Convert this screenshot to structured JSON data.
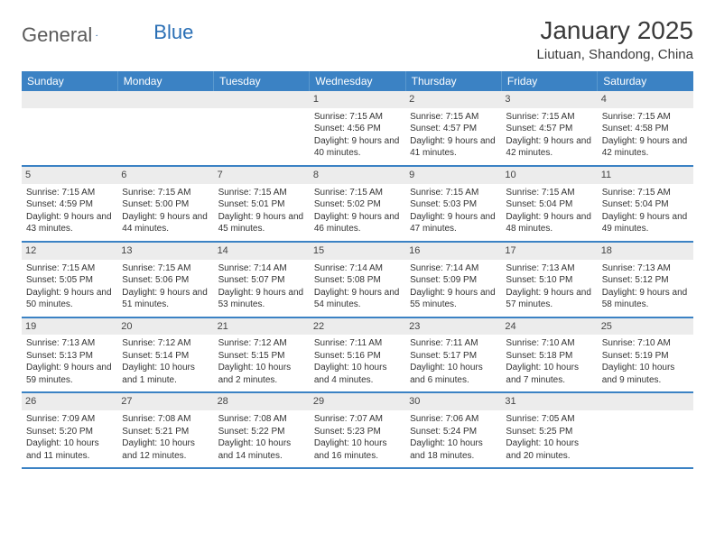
{
  "logo": {
    "text1": "General",
    "text2": "Blue"
  },
  "title": "January 2025",
  "location": "Liutuan, Shandong, China",
  "colors": {
    "header_bg": "#3b82c4",
    "header_text": "#ffffff",
    "daynum_bg": "#ececec",
    "border": "#3b82c4",
    "logo_gray": "#5a5a5a",
    "logo_blue": "#2a6fb5"
  },
  "days_of_week": [
    "Sunday",
    "Monday",
    "Tuesday",
    "Wednesday",
    "Thursday",
    "Friday",
    "Saturday"
  ],
  "weeks": [
    [
      {
        "blank": true
      },
      {
        "blank": true
      },
      {
        "blank": true
      },
      {
        "n": "1",
        "sr": "7:15 AM",
        "ss": "4:56 PM",
        "dl": "9 hours and 40 minutes."
      },
      {
        "n": "2",
        "sr": "7:15 AM",
        "ss": "4:57 PM",
        "dl": "9 hours and 41 minutes."
      },
      {
        "n": "3",
        "sr": "7:15 AM",
        "ss": "4:57 PM",
        "dl": "9 hours and 42 minutes."
      },
      {
        "n": "4",
        "sr": "7:15 AM",
        "ss": "4:58 PM",
        "dl": "9 hours and 42 minutes."
      }
    ],
    [
      {
        "n": "5",
        "sr": "7:15 AM",
        "ss": "4:59 PM",
        "dl": "9 hours and 43 minutes."
      },
      {
        "n": "6",
        "sr": "7:15 AM",
        "ss": "5:00 PM",
        "dl": "9 hours and 44 minutes."
      },
      {
        "n": "7",
        "sr": "7:15 AM",
        "ss": "5:01 PM",
        "dl": "9 hours and 45 minutes."
      },
      {
        "n": "8",
        "sr": "7:15 AM",
        "ss": "5:02 PM",
        "dl": "9 hours and 46 minutes."
      },
      {
        "n": "9",
        "sr": "7:15 AM",
        "ss": "5:03 PM",
        "dl": "9 hours and 47 minutes."
      },
      {
        "n": "10",
        "sr": "7:15 AM",
        "ss": "5:04 PM",
        "dl": "9 hours and 48 minutes."
      },
      {
        "n": "11",
        "sr": "7:15 AM",
        "ss": "5:04 PM",
        "dl": "9 hours and 49 minutes."
      }
    ],
    [
      {
        "n": "12",
        "sr": "7:15 AM",
        "ss": "5:05 PM",
        "dl": "9 hours and 50 minutes."
      },
      {
        "n": "13",
        "sr": "7:15 AM",
        "ss": "5:06 PM",
        "dl": "9 hours and 51 minutes."
      },
      {
        "n": "14",
        "sr": "7:14 AM",
        "ss": "5:07 PM",
        "dl": "9 hours and 53 minutes."
      },
      {
        "n": "15",
        "sr": "7:14 AM",
        "ss": "5:08 PM",
        "dl": "9 hours and 54 minutes."
      },
      {
        "n": "16",
        "sr": "7:14 AM",
        "ss": "5:09 PM",
        "dl": "9 hours and 55 minutes."
      },
      {
        "n": "17",
        "sr": "7:13 AM",
        "ss": "5:10 PM",
        "dl": "9 hours and 57 minutes."
      },
      {
        "n": "18",
        "sr": "7:13 AM",
        "ss": "5:12 PM",
        "dl": "9 hours and 58 minutes."
      }
    ],
    [
      {
        "n": "19",
        "sr": "7:13 AM",
        "ss": "5:13 PM",
        "dl": "9 hours and 59 minutes."
      },
      {
        "n": "20",
        "sr": "7:12 AM",
        "ss": "5:14 PM",
        "dl": "10 hours and 1 minute."
      },
      {
        "n": "21",
        "sr": "7:12 AM",
        "ss": "5:15 PM",
        "dl": "10 hours and 2 minutes."
      },
      {
        "n": "22",
        "sr": "7:11 AM",
        "ss": "5:16 PM",
        "dl": "10 hours and 4 minutes."
      },
      {
        "n": "23",
        "sr": "7:11 AM",
        "ss": "5:17 PM",
        "dl": "10 hours and 6 minutes."
      },
      {
        "n": "24",
        "sr": "7:10 AM",
        "ss": "5:18 PM",
        "dl": "10 hours and 7 minutes."
      },
      {
        "n": "25",
        "sr": "7:10 AM",
        "ss": "5:19 PM",
        "dl": "10 hours and 9 minutes."
      }
    ],
    [
      {
        "n": "26",
        "sr": "7:09 AM",
        "ss": "5:20 PM",
        "dl": "10 hours and 11 minutes."
      },
      {
        "n": "27",
        "sr": "7:08 AM",
        "ss": "5:21 PM",
        "dl": "10 hours and 12 minutes."
      },
      {
        "n": "28",
        "sr": "7:08 AM",
        "ss": "5:22 PM",
        "dl": "10 hours and 14 minutes."
      },
      {
        "n": "29",
        "sr": "7:07 AM",
        "ss": "5:23 PM",
        "dl": "10 hours and 16 minutes."
      },
      {
        "n": "30",
        "sr": "7:06 AM",
        "ss": "5:24 PM",
        "dl": "10 hours and 18 minutes."
      },
      {
        "n": "31",
        "sr": "7:05 AM",
        "ss": "5:25 PM",
        "dl": "10 hours and 20 minutes."
      },
      {
        "blank": true
      }
    ]
  ],
  "labels": {
    "sunrise": "Sunrise: ",
    "sunset": "Sunset: ",
    "daylight": "Daylight: "
  }
}
